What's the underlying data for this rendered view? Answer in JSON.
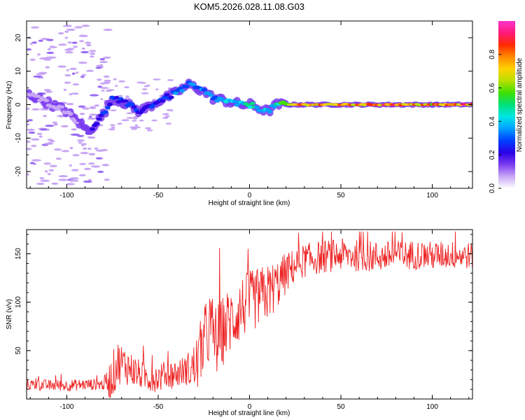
{
  "title": "KOM5.2026.028.11.08.G03",
  "chart_data": [
    {
      "type": "heatmap",
      "xlabel": "Height of straight line (km)",
      "ylabel": "Frequency (Hz)",
      "xlim": [
        -122,
        122
      ],
      "ylim": [
        -25,
        25
      ],
      "xticks": [
        -100,
        -50,
        0,
        50,
        100
      ],
      "yticks": [
        -20,
        -10,
        0,
        10,
        20
      ],
      "colorbar": {
        "label": "Normalized spectral amplitude",
        "range": [
          0,
          1
        ],
        "ticks": [
          "0.0",
          "0.2",
          "0.4",
          "0.6",
          "0.8"
        ],
        "colors": [
          "#ffffff",
          "#c8a6f5",
          "#7a3cf0",
          "#2a00e6",
          "#0040ff",
          "#00a0ff",
          "#00e6e6",
          "#00e07a",
          "#40e000",
          "#b8e000",
          "#ffd200",
          "#ff8a00",
          "#ff2a00",
          "#ff1a7a",
          "#ff33cc"
        ]
      },
      "ridge": [
        {
          "x": -120,
          "f": 3
        },
        {
          "x": -100,
          "f": -2
        },
        {
          "x": -88,
          "f": -8
        },
        {
          "x": -80,
          "f": -3
        },
        {
          "x": -75,
          "f": 2
        },
        {
          "x": -70,
          "f": 1
        },
        {
          "x": -60,
          "f": -2
        },
        {
          "x": -50,
          "f": 1
        },
        {
          "x": -42,
          "f": 3
        },
        {
          "x": -33,
          "f": 6
        },
        {
          "x": -25,
          "f": 4
        },
        {
          "x": -20,
          "f": 2
        },
        {
          "x": -12,
          "f": 1
        },
        {
          "x": -5,
          "f": 0
        },
        {
          "x": 0,
          "f": 0
        },
        {
          "x": 5,
          "f": -1
        },
        {
          "x": 10,
          "f": -2
        },
        {
          "x": 15,
          "f": 0
        },
        {
          "x": 25,
          "f": 0
        },
        {
          "x": 120,
          "f": 0
        }
      ],
      "ridge_peak_amplitude": [
        {
          "x": -120,
          "a": 0.05
        },
        {
          "x": -95,
          "a": 0.1
        },
        {
          "x": -85,
          "a": 0.25
        },
        {
          "x": -75,
          "a": 0.3
        },
        {
          "x": -60,
          "a": 0.28
        },
        {
          "x": -45,
          "a": 0.3
        },
        {
          "x": -33,
          "a": 0.42
        },
        {
          "x": -20,
          "a": 0.35
        },
        {
          "x": -10,
          "a": 0.45
        },
        {
          "x": 0,
          "a": 0.55
        },
        {
          "x": 10,
          "a": 0.4
        },
        {
          "x": 18,
          "a": 0.6
        },
        {
          "x": 25,
          "a": 0.85
        },
        {
          "x": 50,
          "a": 0.9
        },
        {
          "x": 80,
          "a": 0.95
        },
        {
          "x": 100,
          "a": 0.85
        },
        {
          "x": 120,
          "a": 0.95
        }
      ]
    },
    {
      "type": "line",
      "xlabel": "Height of straight line (km)",
      "ylabel": "SNR (v/v)",
      "xlim": [
        -122,
        122
      ],
      "ylim": [
        0,
        175
      ],
      "xticks": [
        -100,
        -50,
        0,
        50,
        100
      ],
      "yticks": [
        50,
        100,
        150
      ],
      "series": [
        {
          "color": "#ee2222",
          "points": [
            {
              "x": -122,
              "y": 15
            },
            {
              "x": -110,
              "y": 14
            },
            {
              "x": -100,
              "y": 14
            },
            {
              "x": -90,
              "y": 15
            },
            {
              "x": -80,
              "y": 15
            },
            {
              "x": -76,
              "y": 20
            },
            {
              "x": -72,
              "y": 38
            },
            {
              "x": -68,
              "y": 35
            },
            {
              "x": -60,
              "y": 25
            },
            {
              "x": -55,
              "y": 22
            },
            {
              "x": -50,
              "y": 22
            },
            {
              "x": -45,
              "y": 25
            },
            {
              "x": -40,
              "y": 26
            },
            {
              "x": -35,
              "y": 30
            },
            {
              "x": -30,
              "y": 32
            },
            {
              "x": -25,
              "y": 55
            },
            {
              "x": -22,
              "y": 75
            },
            {
              "x": -18,
              "y": 60
            },
            {
              "x": -12,
              "y": 78
            },
            {
              "x": -8,
              "y": 85
            },
            {
              "x": -4,
              "y": 95
            },
            {
              "x": 0,
              "y": 100
            },
            {
              "x": 5,
              "y": 105
            },
            {
              "x": 10,
              "y": 110
            },
            {
              "x": 15,
              "y": 118
            },
            {
              "x": 20,
              "y": 130
            },
            {
              "x": 25,
              "y": 138
            },
            {
              "x": 30,
              "y": 143
            },
            {
              "x": 40,
              "y": 147
            },
            {
              "x": 50,
              "y": 149
            },
            {
              "x": 60,
              "y": 148
            },
            {
              "x": 70,
              "y": 147
            },
            {
              "x": 80,
              "y": 148
            },
            {
              "x": 90,
              "y": 149
            },
            {
              "x": 100,
              "y": 148
            },
            {
              "x": 110,
              "y": 149
            },
            {
              "x": 122,
              "y": 148
            }
          ],
          "spread": [
            {
              "x": -122,
              "s": 6
            },
            {
              "x": -80,
              "s": 6
            },
            {
              "x": -75,
              "s": 25
            },
            {
              "x": -60,
              "s": 15
            },
            {
              "x": -35,
              "s": 15
            },
            {
              "x": -25,
              "s": 40
            },
            {
              "x": -10,
              "s": 35
            },
            {
              "x": 10,
              "s": 30
            },
            {
              "x": 25,
              "s": 18
            },
            {
              "x": 122,
              "s": 14
            }
          ]
        }
      ]
    }
  ]
}
